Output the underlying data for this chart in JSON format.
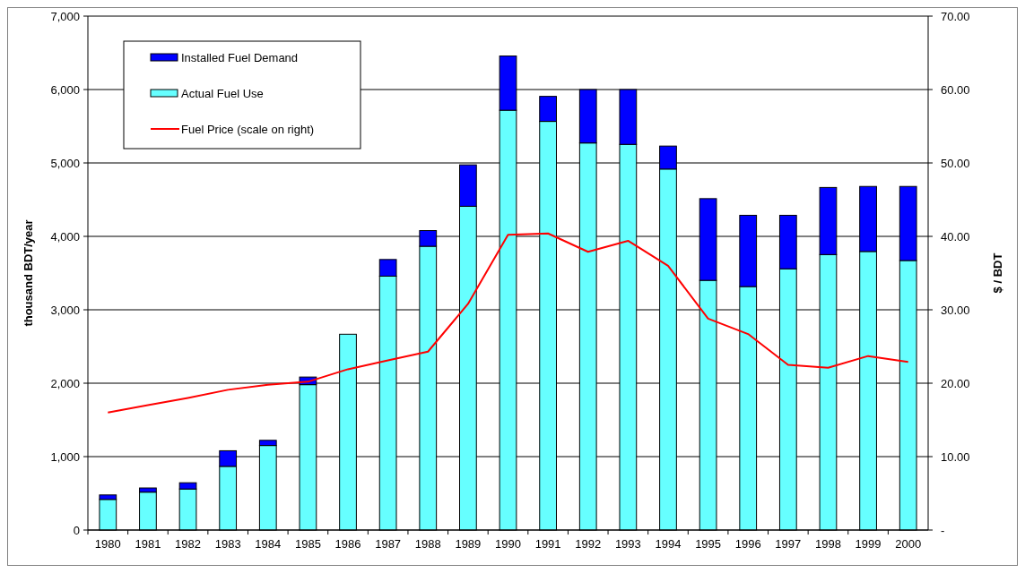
{
  "chart_data": {
    "type": "bar",
    "stacked": true,
    "ylabel": "thousand BDT/year",
    "y2label": "$ / BDT",
    "categories": [
      "1980",
      "1981",
      "1982",
      "1983",
      "1984",
      "1985",
      "1986",
      "1987",
      "1988",
      "1989",
      "1990",
      "1991",
      "1992",
      "1993",
      "1994",
      "1995",
      "1996",
      "1997",
      "1998",
      "1999",
      "2000"
    ],
    "series": [
      {
        "name": "Actual Fuel Use",
        "color": "#66ffff",
        "values": [
          417,
          516,
          559,
          867,
          1151,
          1980,
          2667,
          3458,
          3865,
          4410,
          5718,
          5566,
          5272,
          5253,
          4917,
          3401,
          3316,
          3558,
          3752,
          3794,
          3671
        ]
      },
      {
        "name": "Installed Fuel Demand",
        "color": "#0000ff",
        "values": [
          61,
          57,
          85,
          213,
          71,
          104,
          0,
          227,
          214,
          564,
          739,
          341,
          728,
          747,
          313,
          1113,
          971,
          729,
          914,
          886,
          1009
        ]
      },
      {
        "name": "Fuel Price (scale on right)",
        "type": "line",
        "axis": "y2",
        "color": "#ff0000",
        "values": [
          16.0,
          17.0,
          18.0,
          19.1,
          19.8,
          20.2,
          21.9,
          23.1,
          24.3,
          30.8,
          40.2,
          40.4,
          37.9,
          39.4,
          36.0,
          28.8,
          26.7,
          22.5,
          22.1,
          23.7,
          22.9
        ]
      }
    ],
    "ylim": [
      0,
      7000
    ],
    "yticks": [
      0,
      {
        "value": 1000,
        "label": "1,000"
      },
      {
        "value": 2000,
        "label": "2,000"
      },
      {
        "value": 3000,
        "label": "3,000"
      },
      {
        "value": 4000,
        "label": "4,000"
      },
      {
        "value": 5000,
        "label": "5,000"
      },
      {
        "value": 6000,
        "label": "6,000"
      },
      {
        "value": 7000,
        "label": "7,000"
      }
    ],
    "y2lim": [
      0,
      70
    ],
    "y2ticks": [
      {
        "value": 0,
        "label": "-"
      },
      {
        "value": 10,
        "label": "10.00"
      },
      {
        "value": 20,
        "label": "20.00"
      },
      {
        "value": 30,
        "label": "30.00"
      },
      {
        "value": 40,
        "label": "40.00"
      },
      {
        "value": 50,
        "label": "50.00"
      },
      {
        "value": 60,
        "label": "60.00"
      },
      {
        "value": 70,
        "label": "70.00"
      }
    ],
    "grid": "y",
    "legend": "top left",
    "marker": "none",
    "line_style": "solid"
  }
}
